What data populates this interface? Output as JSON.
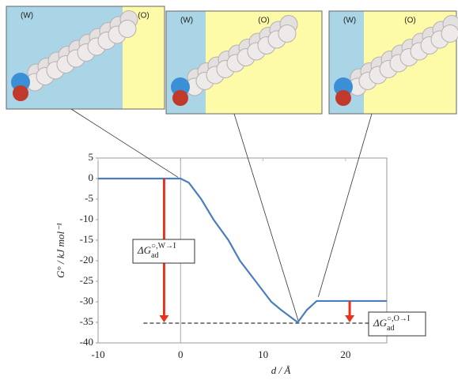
{
  "chart_data": {
    "type": "line",
    "xlabel": "d / Å",
    "ylabel": "G° / kJ mol⁻¹",
    "xlim": [
      -10,
      25
    ],
    "xticks": [
      -10,
      0,
      10,
      20
    ],
    "ylim": [
      -40,
      5
    ],
    "yticks": [
      5,
      0,
      -5,
      -10,
      -15,
      -20,
      -25,
      -30,
      -35,
      -40
    ],
    "series": [
      {
        "color": "#4a7ebb",
        "x": [
          -10,
          0,
          1,
          2.5,
          4,
          5.8,
          7.2,
          9.1,
          11,
          12.2,
          14.2,
          15.3,
          16.5,
          25
        ],
        "values": [
          0,
          0,
          -1,
          -5,
          -10,
          -15,
          -20,
          -25,
          -30,
          -32,
          -35,
          -32,
          -29.8,
          -29.8
        ]
      }
    ],
    "reference_line": -35.2,
    "arrows": [
      {
        "x": -2,
        "from": 0,
        "to": -35,
        "color": "#e8321e"
      },
      {
        "x": 20.5,
        "from": -29.8,
        "to": -35,
        "color": "#e8321e"
      }
    ],
    "annotations": [
      {
        "main": "ΔG",
        "sup": "○,W→I",
        "sub": "ad"
      },
      {
        "main": "ΔG",
        "sup": "○,O→I",
        "sub": "ad"
      }
    ]
  },
  "insets": [
    {
      "left": "(W)",
      "right": "(O)"
    },
    {
      "left": "(W)",
      "right": "(O)"
    },
    {
      "left": "(W)",
      "right": "(O)"
    }
  ]
}
